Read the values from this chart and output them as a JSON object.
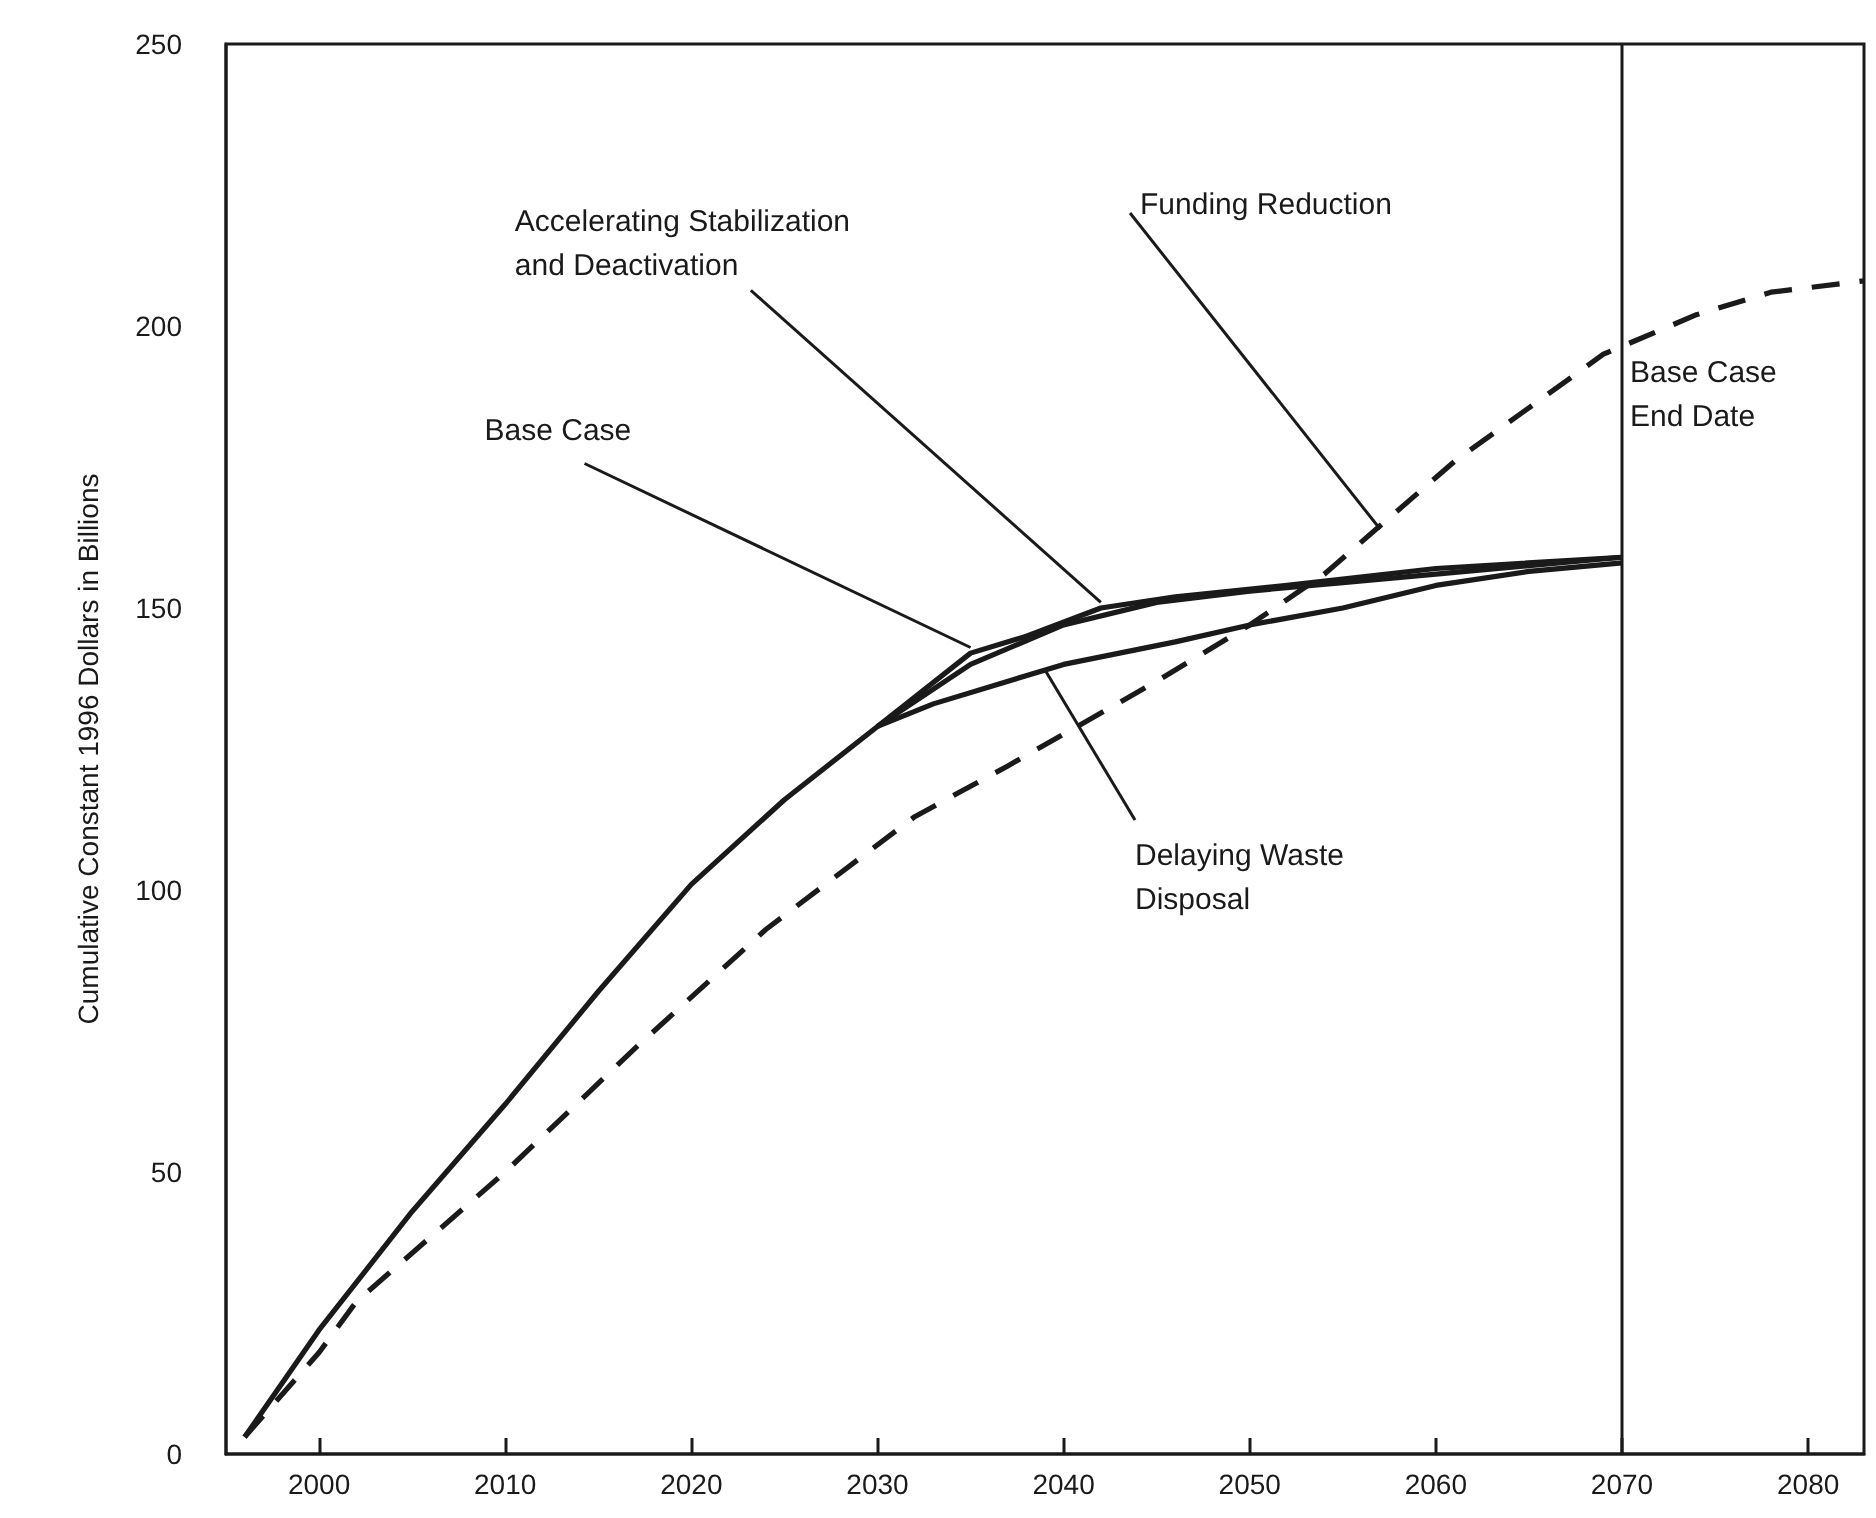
{
  "chart_data": {
    "type": "line",
    "ylabel": "Cumulative Constant 1996 Dollars in Billions",
    "xlim": [
      1995,
      2083
    ],
    "xticks": [
      2000,
      2010,
      2020,
      2030,
      2040,
      2050,
      2060,
      2070,
      2080
    ],
    "ylim": [
      0,
      250
    ],
    "yticks": [
      0,
      50,
      100,
      150,
      200,
      250
    ],
    "grid": false,
    "marker": "none",
    "series": [
      {
        "color": "#1a1a1a",
        "line_style": "dashed",
        "x": [
          1996,
          2000,
          2002,
          2010,
          2017,
          2024,
          2032,
          2037,
          2045,
          2050,
          2054,
          2061,
          2069,
          2074,
          2078,
          2083
        ],
        "values": [
          3,
          18,
          27,
          50,
          72,
          93,
          113,
          122,
          137,
          147,
          156,
          176,
          195,
          202,
          206,
          208
        ]
      },
      {
        "color": "#1a1a1a",
        "line_style": "solid",
        "x": [
          2030,
          2035,
          2038,
          2042,
          2046,
          2052,
          2060,
          2070
        ],
        "values": [
          129,
          142,
          145,
          150,
          152,
          154,
          157,
          159
        ]
      },
      {
        "color": "#1a1a1a",
        "line_style": "solid",
        "x": [
          1996,
          2000,
          2005,
          2010,
          2015,
          2020,
          2025,
          2030,
          2035,
          2040,
          2045,
          2050,
          2055,
          2060,
          2065,
          2070
        ],
        "values": [
          3,
          22,
          43,
          62,
          82,
          101,
          116,
          129,
          140,
          147,
          151,
          153,
          154.5,
          156,
          157.5,
          159
        ]
      },
      {
        "color": "#1a1a1a",
        "line_style": "solid",
        "x": [
          2030,
          2033,
          2040,
          2046,
          2050,
          2055,
          2060,
          2065,
          2070
        ],
        "values": [
          129,
          133,
          140,
          144,
          147,
          150,
          154,
          156.5,
          158
        ]
      }
    ],
    "annotations": [
      {
        "text": "Funding Reduction",
        "x": 2057,
        "y": 164
      },
      {
        "text": "Accelerating Stabilization\nand Deactivation",
        "x": 2042,
        "y": 151
      },
      {
        "text": "Base Case",
        "x": 2035,
        "y": 143
      },
      {
        "text": "Delaying Waste Disposal",
        "x": 2039,
        "y": 139
      }
    ],
    "ref_lines": [
      {
        "axis": "x",
        "value": 2070,
        "label": "Base Case\nEnd Date",
        "color": "#1a1a1a",
        "line_style": "solid"
      }
    ]
  }
}
